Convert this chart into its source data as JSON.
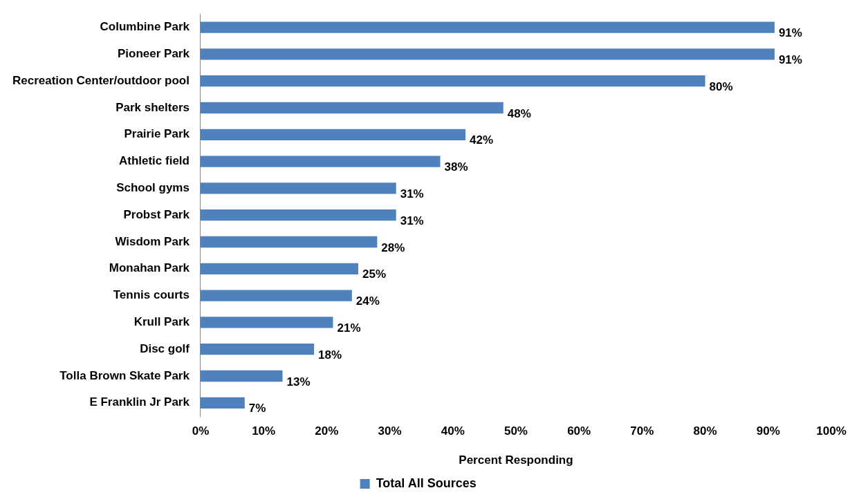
{
  "chart_data": {
    "type": "bar",
    "orientation": "horizontal",
    "xlabel": "Percent Responding",
    "categories": [
      "Columbine Park",
      "Pioneer Park",
      "Recreation Center/outdoor pool",
      "Park shelters",
      "Prairie Park",
      "Athletic field",
      "School gyms",
      "Probst Park",
      "Wisdom Park",
      "Monahan Park",
      "Tennis courts",
      "Krull Park",
      "Disc golf",
      "Tolla Brown Skate Park",
      "E Franklin Jr Park"
    ],
    "series": [
      {
        "name": "Total All Sources",
        "color": "#4f81bd",
        "values": [
          91,
          91,
          80,
          48,
          42,
          38,
          31,
          31,
          28,
          25,
          24,
          21,
          18,
          13,
          7
        ],
        "value_labels": [
          "91%",
          "91%",
          "80%",
          "48%",
          "42%",
          "38%",
          "31%",
          "31%",
          "28%",
          "25%",
          "24%",
          "21%",
          "18%",
          "13%",
          "7%"
        ]
      }
    ],
    "xlim": [
      0,
      100
    ],
    "xticks": [
      {
        "value": 0,
        "label": "0%"
      },
      {
        "value": 10,
        "label": "10%"
      },
      {
        "value": 20,
        "label": "20%"
      },
      {
        "value": 30,
        "label": "30%"
      },
      {
        "value": 40,
        "label": "40%"
      },
      {
        "value": 50,
        "label": "50%"
      },
      {
        "value": 60,
        "label": "60%"
      },
      {
        "value": 70,
        "label": "70%"
      },
      {
        "value": 80,
        "label": "80%"
      },
      {
        "value": 90,
        "label": "90%"
      },
      {
        "value": 100,
        "label": "100%"
      }
    ],
    "grid": false,
    "legend": "bottom"
  }
}
